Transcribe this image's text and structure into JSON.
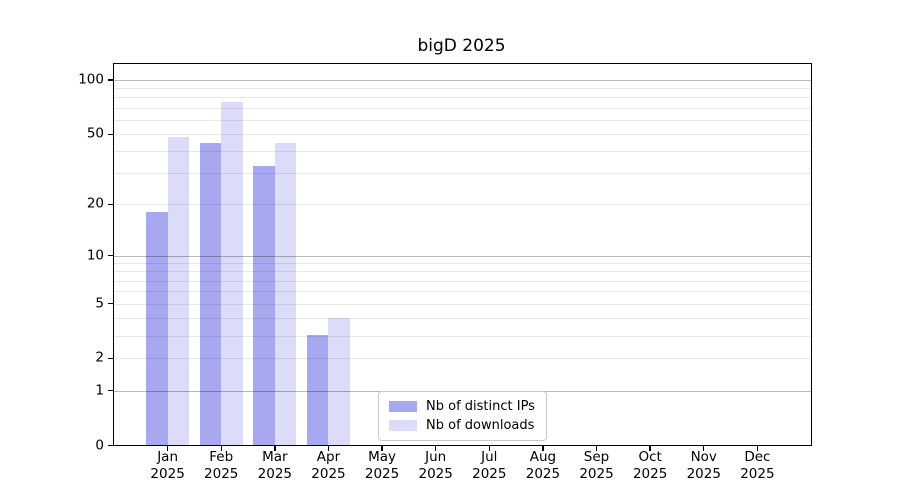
{
  "chart_data": {
    "type": "bar",
    "title": "bigD 2025",
    "categories": [
      "Jan",
      "Feb",
      "Mar",
      "Apr",
      "May",
      "Jun",
      "Jul",
      "Aug",
      "Sep",
      "Oct",
      "Nov",
      "Dec"
    ],
    "category_year": "2025",
    "series": [
      {
        "name": "Nb of distinct IPs",
        "color": "#a8a8f0",
        "values": [
          18,
          44,
          33,
          3,
          0,
          0,
          0,
          0,
          0,
          0,
          0,
          0
        ]
      },
      {
        "name": "Nb of downloads",
        "color": "#dcdcfa",
        "values": [
          48,
          75,
          44,
          4,
          0,
          0,
          0,
          0,
          0,
          0,
          0,
          0
        ]
      }
    ],
    "yscale": "log1p",
    "ylim": [
      0,
      122
    ],
    "y_tick_values": [
      0,
      1,
      2,
      5,
      10,
      20,
      50,
      100
    ],
    "y_tick_labels": [
      "0",
      "1",
      "2",
      "5",
      "10",
      "20",
      "50",
      "100"
    ],
    "y_major_gridlines": [
      1,
      10,
      100
    ],
    "y_minor_gridlines": [
      2,
      3,
      4,
      5,
      6,
      7,
      8,
      9,
      20,
      30,
      40,
      50,
      60,
      70,
      80,
      90
    ],
    "grid": "horizontal",
    "legend_position": "lower center",
    "colors": {
      "major_grid": "rgba(0,0,0,0.28)",
      "minor_grid": "rgba(0,0,0,0.09)",
      "spine": "#000000",
      "background": "#ffffff"
    }
  }
}
